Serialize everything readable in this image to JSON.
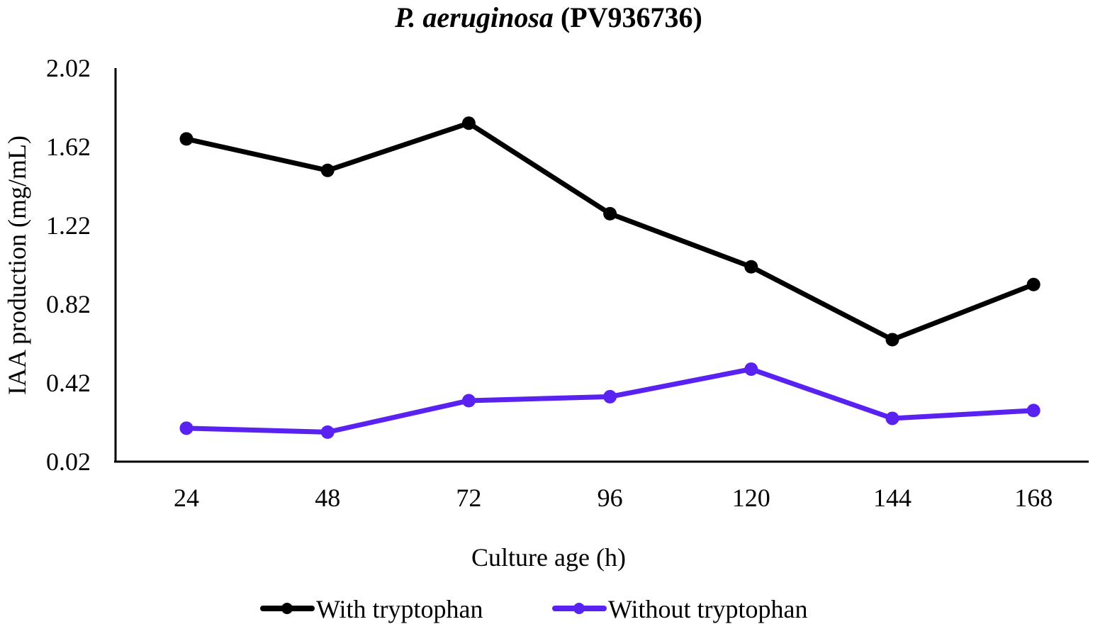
{
  "chart_data": {
    "type": "line",
    "title_italic": "P. aeruginosa",
    "title_rest": " (PV936736)",
    "xlabel": "Culture age (h)",
    "ylabel": "IAA production (mg/mL)",
    "categories": [
      "24",
      "48",
      "72",
      "96",
      "120",
      "144",
      "168"
    ],
    "yticks": [
      "0.02",
      "0.42",
      "0.82",
      "1.22",
      "1.62",
      "2.02"
    ],
    "ylim": [
      0.02,
      2.02
    ],
    "grid": false,
    "legend_position": "bottom",
    "series": [
      {
        "name": "With tryptophan",
        "color": "#000000",
        "values": [
          1.66,
          1.5,
          1.74,
          1.28,
          1.01,
          0.64,
          0.92
        ]
      },
      {
        "name": "Without tryptophan",
        "color": "#5a22f0",
        "values": [
          0.19,
          0.17,
          0.33,
          0.35,
          0.49,
          0.24,
          0.28
        ]
      }
    ]
  }
}
